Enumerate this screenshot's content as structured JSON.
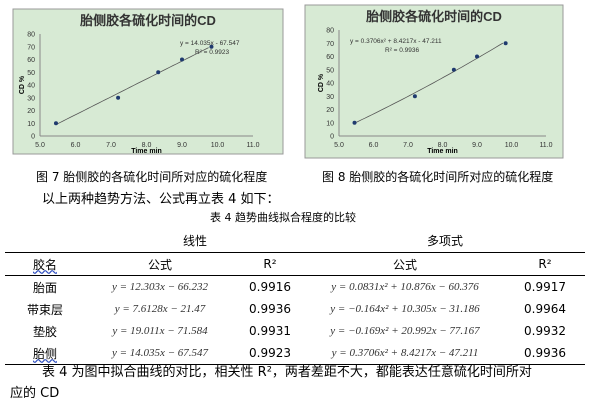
{
  "chart_data": [
    {
      "type": "scatter",
      "title": "胎侧胶各硫化时间的CD",
      "xlabel": "Time  min",
      "ylabel": "CD %",
      "xlim": [
        5.0,
        11.0
      ],
      "ylim": [
        0,
        80
      ],
      "xticks": [
        "5.0",
        "6.0",
        "7.0",
        "8.0",
        "9.0",
        "10.0",
        "11.0"
      ],
      "yticks": [
        "0",
        "10",
        "20",
        "30",
        "40",
        "50",
        "60",
        "70",
        "80"
      ],
      "x": [
        5.45,
        7.2,
        8.33,
        9.0,
        9.83
      ],
      "y": [
        10,
        30,
        50,
        60,
        70
      ],
      "trendline": {
        "type": "linear",
        "equation": "y = 14.035x - 67.547",
        "r2": "R² = 0.9923"
      },
      "background": "#d7ead4",
      "grid": false
    },
    {
      "type": "scatter",
      "title": "胎侧胶各硫化时间的CD",
      "xlabel": "Time  min",
      "ylabel": "CD %",
      "xlim": [
        5.0,
        11.0
      ],
      "ylim": [
        0,
        80
      ],
      "xticks": [
        "5.0",
        "6.0",
        "7.0",
        "8.0",
        "9.0",
        "10.0",
        "11.0"
      ],
      "yticks": [
        "0",
        "10",
        "20",
        "30",
        "40",
        "50",
        "60",
        "70",
        "80"
      ],
      "x": [
        5.45,
        7.2,
        8.33,
        9.0,
        9.83
      ],
      "y": [
        10,
        30,
        50,
        60,
        70
      ],
      "trendline": {
        "type": "polynomial",
        "equation": "y = 0.3706x² + 8.4217x - 47.211",
        "r2": "R² = 0.9936"
      },
      "background": "#d7ead4",
      "grid": false
    }
  ],
  "captions": [
    "图 7 胎侧胶的各硫化时间所对应的硫化程度",
    "图 8 胎侧胶的各硫化时间所对应的硫化程度"
  ],
  "intro": "以上两种趋势方法、公式再立表 4 如下：",
  "table": {
    "title": "表 4  趋势曲线拟合程度的比较",
    "group_headers": [
      "线性",
      "多项式"
    ],
    "headers": [
      "胶名",
      "公式",
      "R²",
      "公式",
      "R²"
    ],
    "rows": [
      [
        "胎面",
        "y = 12.303x − 66.232",
        "0.9916",
        "y = 0.0831x² + 10.876x − 60.376",
        "0.9917"
      ],
      [
        "带束层",
        "y = 7.6128x − 21.47",
        "0.9936",
        "y = −0.164x² + 10.305x − 31.186",
        "0.9964"
      ],
      [
        "垫胶",
        "y = 19.011x − 71.584",
        "0.9931",
        "y = −0.169x² + 20.992x − 77.167",
        "0.9932"
      ],
      [
        "胎侧",
        "y = 14.035x − 67.547",
        "0.9923",
        "y = 0.3706x² + 8.4217x − 47.211",
        "0.9936"
      ]
    ]
  },
  "paragraph": [
    "表 4 为图中拟合曲线的对比，相关性 R²，两者差距不大，都能表达任意硫化时间所对",
    "应的 CD"
  ]
}
